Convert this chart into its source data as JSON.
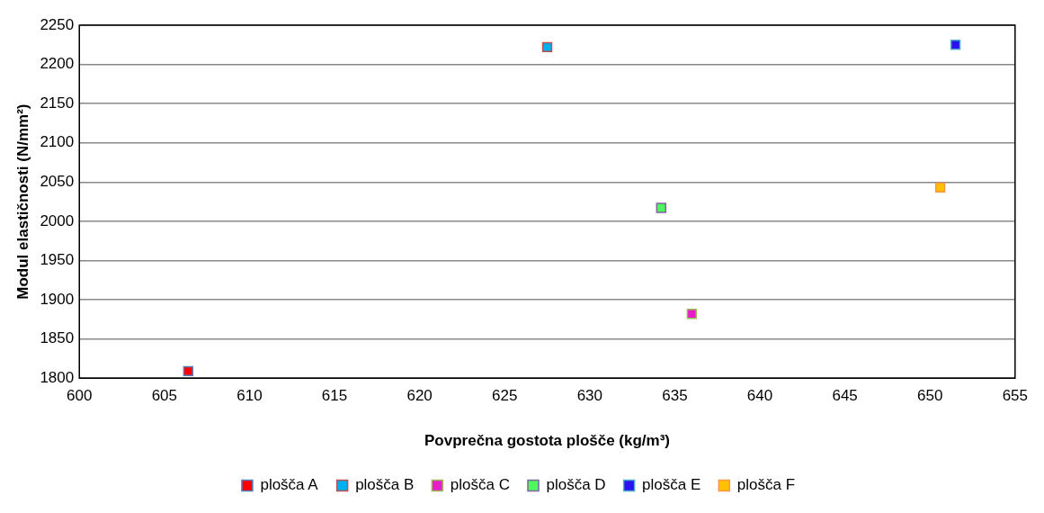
{
  "chart_data": {
    "type": "scatter",
    "xlabel": "Povprečna gostota plošče (kg/m³)",
    "ylabel": "Modul elastičnosti (N/mm²)",
    "xlim": [
      600,
      655
    ],
    "xticks": [
      600,
      605,
      610,
      615,
      620,
      625,
      630,
      635,
      640,
      645,
      650,
      655
    ],
    "ylim": [
      1800,
      2250
    ],
    "yticks": [
      1800,
      1850,
      1900,
      1950,
      2000,
      2050,
      2100,
      2150,
      2200,
      2250
    ],
    "grid": "y",
    "legend": "bottom",
    "marker": "square",
    "series": [
      {
        "name": "plošča A",
        "color": "#ff0000",
        "x": [
          606.4
        ],
        "values": [
          1809
        ]
      },
      {
        "name": "plošča B",
        "color": "#00b0f0",
        "x": [
          627.5
        ],
        "values": [
          2222
        ]
      },
      {
        "name": "plošča C",
        "color": "#e81ccb",
        "x": [
          636.0
        ],
        "values": [
          1882
        ]
      },
      {
        "name": "plošča D",
        "color": "#4dfa5b",
        "x": [
          634.2
        ],
        "values": [
          2017
        ]
      },
      {
        "name": "plošča E",
        "color": "#2a12f0",
        "x": [
          651.5
        ],
        "values": [
          2225
        ]
      },
      {
        "name": "plošča F",
        "color": "#ffc000",
        "x": [
          650.6
        ],
        "values": [
          2043
        ]
      }
    ]
  }
}
